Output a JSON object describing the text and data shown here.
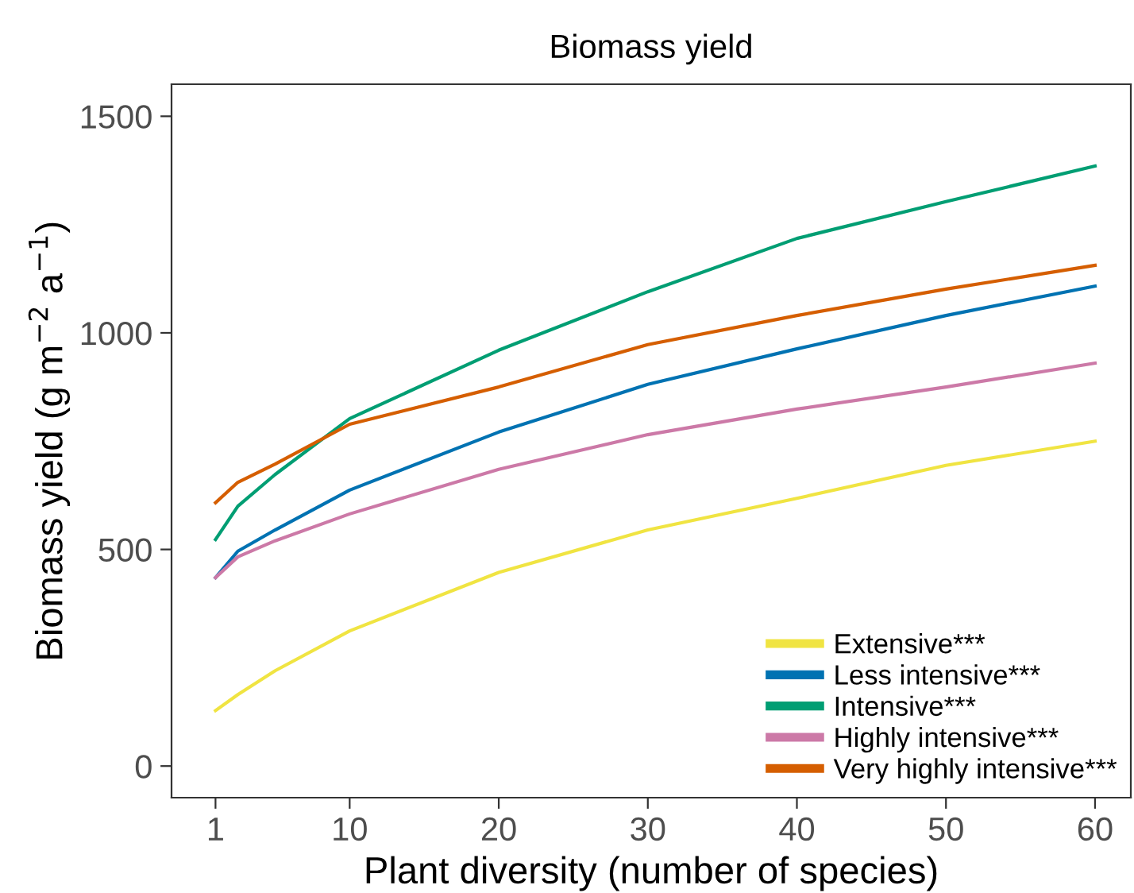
{
  "chart_data": {
    "type": "line",
    "title": "Biomass yield",
    "xlabel": "Plant diversity (number of species)",
    "ylabel": "Biomass yield (g m$^{−2}$ a$^{−1}$)",
    "x": [
      1,
      2.5,
      5,
      10,
      20,
      30,
      40,
      50,
      60
    ],
    "series": [
      {
        "name": "Extensive***",
        "color": "#f0e442",
        "values": [
          128,
          165,
          220,
          312,
          447,
          545,
          618,
          694,
          750
        ]
      },
      {
        "name": "Less intensive***",
        "color": "#0072b2",
        "values": [
          435,
          496,
          545,
          637,
          771,
          881,
          963,
          1040,
          1108
        ]
      },
      {
        "name": "Intensive***",
        "color": "#009e73",
        "values": [
          523,
          600,
          673,
          802,
          960,
          1095,
          1218,
          1303,
          1385
        ]
      },
      {
        "name": "Highly intensive***",
        "color": "#cc79a7",
        "values": [
          435,
          483,
          520,
          582,
          685,
          765,
          824,
          875,
          930
        ]
      },
      {
        "name": "Very highly intensive***",
        "color": "#d55e00",
        "values": [
          608,
          655,
          697,
          789,
          875,
          973,
          1040,
          1101,
          1156
        ]
      }
    ],
    "xlim": [
      -1.95,
      62.4
    ],
    "ylim": [
      -73,
      1574
    ],
    "xticks": [
      1,
      10,
      20,
      30,
      40,
      50,
      60
    ],
    "yticks": [
      0,
      500,
      1000,
      1500
    ],
    "grid": false,
    "legend": "bottom right"
  }
}
